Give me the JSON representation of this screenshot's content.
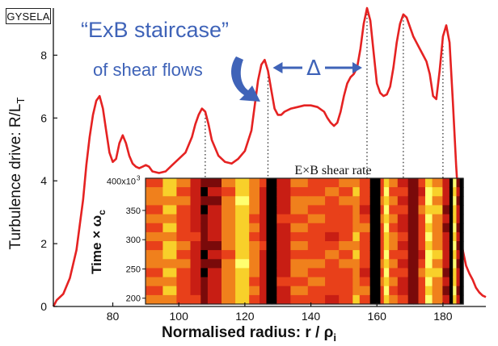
{
  "badge": "GYSELA",
  "annotation": {
    "title": "“ExB staircase”",
    "subtitle": "of shear flows",
    "delta_symbol": "Δ"
  },
  "chart_data": [
    {
      "type": "line",
      "title": "",
      "xlabel": "Normalised radius:  r / ρ",
      "xlabel_subscript": "i",
      "ylabel": "Turbulence drive:  R/L",
      "ylabel_subscript": "T",
      "xlim": [
        62,
        193
      ],
      "ylim": [
        0,
        9.5
      ],
      "x_ticks": [
        80,
        100,
        120,
        140,
        160,
        180
      ],
      "y_ticks": [
        0,
        2,
        4,
        6,
        8
      ],
      "line_color": "#e52222",
      "series": [
        {
          "x": [
            62,
            63,
            65,
            67,
            69,
            70,
            71,
            72,
            73,
            74,
            75,
            76,
            77,
            78,
            79,
            80,
            81,
            82,
            83,
            84,
            85,
            86,
            87,
            88,
            89,
            90,
            91,
            92,
            94,
            96,
            98,
            100,
            102,
            104,
            105,
            106,
            107,
            108,
            109,
            110,
            112,
            114,
            116,
            118,
            120,
            122,
            123,
            124,
            125,
            126,
            127,
            128,
            129,
            130,
            131,
            132,
            134,
            136,
            138,
            140,
            142,
            144,
            145,
            146,
            147,
            148,
            149,
            150,
            151,
            152,
            153,
            154,
            155,
            156,
            157,
            158,
            159,
            160,
            161,
            162,
            163,
            164,
            165,
            166,
            167,
            168,
            169,
            170,
            171,
            172,
            173,
            174,
            175,
            176,
            177,
            178,
            179,
            180,
            181,
            182,
            183,
            184,
            185,
            186,
            187,
            188,
            189,
            190,
            191,
            192,
            193
          ],
          "y": [
            0.0,
            0.2,
            0.4,
            0.9,
            1.8,
            2.6,
            3.4,
            4.5,
            5.4,
            6.1,
            6.55,
            6.7,
            6.3,
            5.6,
            4.9,
            4.6,
            4.7,
            5.2,
            5.45,
            5.2,
            4.8,
            4.55,
            4.45,
            4.4,
            4.45,
            4.5,
            4.45,
            4.3,
            4.25,
            4.3,
            4.5,
            4.7,
            4.9,
            5.4,
            5.8,
            6.1,
            6.3,
            6.2,
            5.8,
            5.3,
            4.8,
            4.6,
            4.55,
            4.7,
            4.95,
            5.6,
            6.4,
            7.2,
            7.7,
            7.85,
            7.5,
            6.9,
            6.3,
            6.1,
            6.1,
            6.2,
            6.3,
            6.35,
            6.4,
            6.4,
            6.35,
            6.2,
            6.0,
            5.85,
            5.75,
            5.85,
            6.2,
            6.7,
            7.1,
            7.3,
            7.4,
            7.6,
            8.2,
            9.0,
            9.5,
            9.1,
            8.1,
            7.1,
            6.8,
            6.7,
            6.75,
            7.0,
            7.6,
            8.4,
            9.0,
            9.3,
            9.2,
            8.9,
            8.6,
            8.4,
            8.2,
            8.0,
            7.8,
            7.4,
            6.7,
            6.6,
            7.5,
            8.6,
            8.95,
            8.4,
            6.5,
            4.5,
            2.8,
            1.8,
            1.3,
            1.05,
            0.85,
            0.6,
            0.45,
            0.35,
            0.3
          ]
        }
      ],
      "reference_lines_x": [
        108,
        127,
        157,
        168,
        180
      ],
      "delta_interval_x": [
        127,
        157
      ]
    },
    {
      "type": "heatmap",
      "title": "E×B shear rate",
      "ylabel": "Time × ω",
      "ylabel_subscript": "c",
      "y_ticks": [
        200,
        250,
        300,
        350
      ],
      "y_tick_top": "400x10",
      "y_tick_top_exponent": "3",
      "ylim": [
        190,
        405
      ],
      "xlim": [
        62,
        193
      ],
      "x_range_shown": [
        91,
        183
      ],
      "colormap": [
        "#000000",
        "#7a0a0a",
        "#c81e14",
        "#e8401a",
        "#f0801c",
        "#f8d02a",
        "#ffff70"
      ],
      "bands": [
        {
          "x": 91,
          "v": 0.6
        },
        {
          "x": 96,
          "v": 0.75
        },
        {
          "x": 100,
          "v": 0.55
        },
        {
          "x": 104,
          "v": 0.35
        },
        {
          "x": 107,
          "v": 0.12
        },
        {
          "x": 109,
          "v": 0.3
        },
        {
          "x": 113,
          "v": 0.65
        },
        {
          "x": 117,
          "v": 0.85
        },
        {
          "x": 121,
          "v": 0.62
        },
        {
          "x": 124,
          "v": 0.35
        },
        {
          "x": 126,
          "v": 0.04
        },
        {
          "x": 127.5,
          "v": 0.04
        },
        {
          "x": 129,
          "v": 0.35
        },
        {
          "x": 133,
          "v": 0.6
        },
        {
          "x": 138,
          "v": 0.55
        },
        {
          "x": 143,
          "v": 0.5
        },
        {
          "x": 147,
          "v": 0.55
        },
        {
          "x": 151,
          "v": 0.7
        },
        {
          "x": 153,
          "v": 0.5
        },
        {
          "x": 156,
          "v": 0.03
        },
        {
          "x": 157.5,
          "v": 0.05
        },
        {
          "x": 159,
          "v": 0.55
        },
        {
          "x": 160,
          "v": 0.9
        },
        {
          "x": 161.5,
          "v": 0.6
        },
        {
          "x": 164,
          "v": 0.4
        },
        {
          "x": 167,
          "v": 0.1
        },
        {
          "x": 168.5,
          "v": 0.1
        },
        {
          "x": 170,
          "v": 0.5
        },
        {
          "x": 172,
          "v": 0.92
        },
        {
          "x": 174,
          "v": 0.7
        },
        {
          "x": 177,
          "v": 0.3
        },
        {
          "x": 179,
          "v": 0.08
        },
        {
          "x": 180,
          "v": 0.9
        },
        {
          "x": 181,
          "v": 0.25
        },
        {
          "x": 182,
          "v": 0.0
        },
        {
          "x": 183,
          "v": 0.0
        }
      ]
    }
  ]
}
